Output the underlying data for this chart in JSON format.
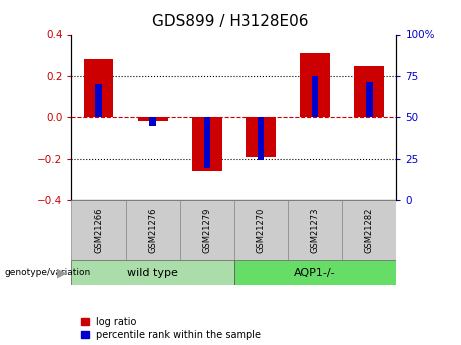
{
  "title": "GDS899 / H3128E06",
  "samples": [
    "GSM21266",
    "GSM21276",
    "GSM21279",
    "GSM21270",
    "GSM21273",
    "GSM21282"
  ],
  "log_ratio": [
    0.28,
    -0.02,
    -0.26,
    -0.19,
    0.31,
    0.25
  ],
  "percentile_rank": [
    0.16,
    -0.04,
    -0.245,
    -0.205,
    0.2,
    0.17
  ],
  "groups": [
    {
      "label": "wild type",
      "indices": [
        0,
        1,
        2
      ],
      "color": "#aaddaa"
    },
    {
      "label": "AQP1-/-",
      "indices": [
        3,
        4,
        5
      ],
      "color": "#66dd66"
    }
  ],
  "ylim": [
    -0.4,
    0.4
  ],
  "yticks_left": [
    -0.4,
    -0.2,
    0,
    0.2,
    0.4
  ],
  "yticks_right": [
    0,
    25,
    50,
    75,
    100
  ],
  "bar_color_red": "#cc0000",
  "bar_color_blue": "#0000cc",
  "zero_line_color": "#cc0000",
  "grid_color": "#000000",
  "title_fontsize": 11,
  "legend_items": [
    "log ratio",
    "percentile rank within the sample"
  ],
  "genotype_label": "genotype/variation",
  "red_bar_width": 0.55,
  "blue_bar_width": 0.12
}
